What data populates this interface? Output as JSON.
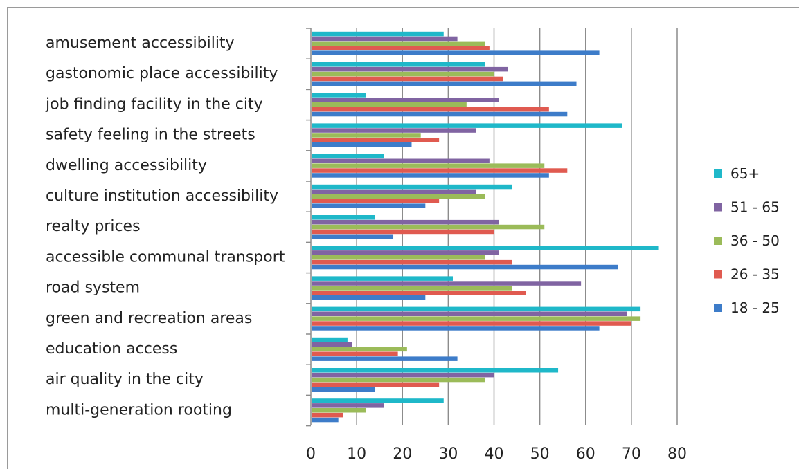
{
  "chart_data": {
    "type": "bar",
    "orientation": "horizontal",
    "categories": [
      "amusement accessibility",
      "gastonomic place accessibility",
      "job finding facility in the city",
      "safety feeling in the streets",
      "dwelling accessibility",
      "culture institution accessibility",
      "realty prices",
      "accessible communal transport",
      "road system",
      "green and recreation areas",
      "education access",
      "air quality in the city",
      "multi-generation rooting"
    ],
    "series": [
      {
        "name": "65+",
        "color": "#1fb8c9",
        "values": [
          29,
          38,
          12,
          68,
          16,
          44,
          14,
          76,
          31,
          72,
          8,
          54,
          29
        ]
      },
      {
        "name": "51 - 65",
        "color": "#8064a2",
        "values": [
          32,
          43,
          41,
          36,
          39,
          36,
          41,
          41,
          59,
          69,
          9,
          40,
          16
        ]
      },
      {
        "name": "36 - 50",
        "color": "#9bbb59",
        "values": [
          38,
          40,
          34,
          24,
          51,
          38,
          51,
          38,
          44,
          72,
          21,
          38,
          12
        ]
      },
      {
        "name": "26 - 35",
        "color": "#e05a50",
        "values": [
          39,
          42,
          52,
          28,
          56,
          28,
          40,
          44,
          47,
          70,
          19,
          28,
          7
        ]
      },
      {
        "name": "18 - 25",
        "color": "#3d7cc9",
        "values": [
          63,
          58,
          56,
          22,
          52,
          25,
          18,
          67,
          25,
          63,
          32,
          14,
          6
        ]
      }
    ],
    "xlim": [
      0,
      80
    ],
    "xticks": [
      "0",
      "10",
      "20",
      "30",
      "40",
      "50",
      "60",
      "70",
      "80"
    ],
    "grid": true,
    "legend_position": "right"
  }
}
